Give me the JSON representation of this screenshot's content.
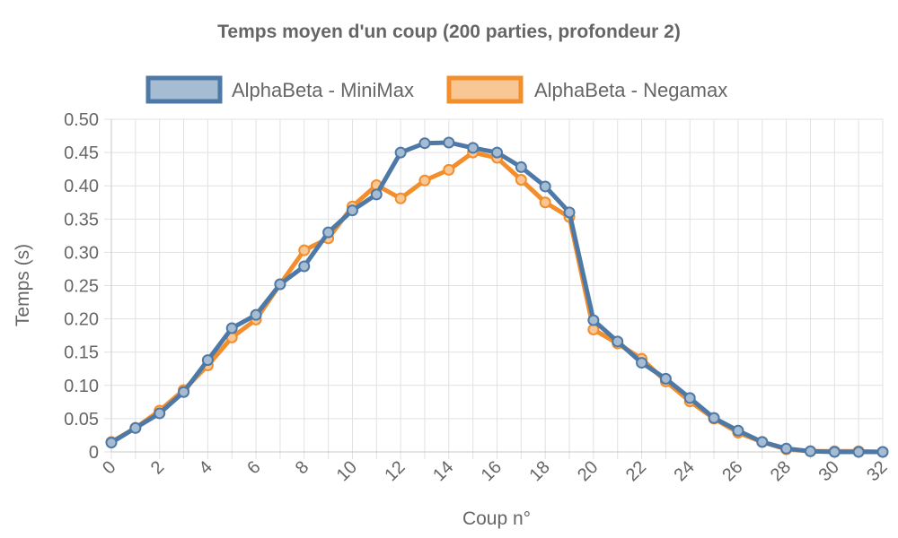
{
  "chart_data": {
    "type": "line",
    "title": "Temps moyen d'un coup (200 parties, profondeur 2)",
    "xlabel": "Coup n°",
    "ylabel": "Temps (s)",
    "ylim": [
      0,
      0.5
    ],
    "xlim": [
      0,
      32
    ],
    "grid": true,
    "legend_position": "top",
    "x": [
      0,
      1,
      2,
      3,
      4,
      5,
      6,
      7,
      8,
      9,
      10,
      11,
      12,
      13,
      14,
      15,
      16,
      17,
      18,
      19,
      20,
      21,
      22,
      23,
      24,
      25,
      26,
      27,
      28,
      29,
      30,
      31,
      32
    ],
    "x_ticks": [
      "0",
      "2",
      "4",
      "6",
      "8",
      "10",
      "12",
      "14",
      "16",
      "18",
      "20",
      "22",
      "24",
      "26",
      "28",
      "30",
      "32"
    ],
    "y_ticks": [
      "0",
      "0.05",
      "0.10",
      "0.15",
      "0.20",
      "0.25",
      "0.30",
      "0.35",
      "0.40",
      "0.45",
      "0.50"
    ],
    "series": [
      {
        "name": "AlphaBeta - Negamax",
        "color": "#f28e2b",
        "fill": "#f9c794",
        "values": [
          0.015,
          0.036,
          0.062,
          0.093,
          0.13,
          0.172,
          0.199,
          0.252,
          0.303,
          0.321,
          0.369,
          0.401,
          0.381,
          0.408,
          0.424,
          0.45,
          0.442,
          0.409,
          0.375,
          0.353,
          0.184,
          0.163,
          0.14,
          0.106,
          0.076,
          0.05,
          0.029,
          0.015,
          0.004,
          0.001,
          0.001,
          0.001,
          0.0
        ]
      },
      {
        "name": "AlphaBeta - MiniMax",
        "color": "#4e79a7",
        "fill": "#a6bcd3",
        "values": [
          0.014,
          0.036,
          0.058,
          0.09,
          0.138,
          0.186,
          0.206,
          0.252,
          0.279,
          0.33,
          0.363,
          0.387,
          0.45,
          0.464,
          0.465,
          0.457,
          0.45,
          0.428,
          0.399,
          0.36,
          0.198,
          0.166,
          0.134,
          0.11,
          0.081,
          0.051,
          0.032,
          0.015,
          0.005,
          0.001,
          0.0,
          0.0,
          0.0
        ]
      }
    ],
    "legend_order": [
      "AlphaBeta - MiniMax",
      "AlphaBeta - Negamax"
    ]
  }
}
